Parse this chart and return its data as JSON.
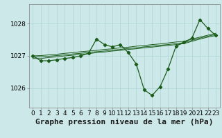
{
  "title": "Graphe pression niveau de la mer (hPa)",
  "background_color": "#cce8e8",
  "grid_color": "#add4d4",
  "line_color": "#1a5c1a",
  "xlim": [
    -0.5,
    23.5
  ],
  "ylim": [
    1025.4,
    1028.6
  ],
  "yticks": [
    1026,
    1027,
    1028
  ],
  "xticks": [
    0,
    1,
    2,
    3,
    4,
    5,
    6,
    7,
    8,
    9,
    10,
    11,
    12,
    13,
    14,
    15,
    16,
    17,
    18,
    19,
    20,
    21,
    22,
    23
  ],
  "main": [
    1027.0,
    1026.85,
    1026.85,
    1026.88,
    1026.92,
    1026.95,
    1027.0,
    1027.08,
    1027.52,
    1027.35,
    1027.28,
    1027.35,
    1027.1,
    1026.75,
    1025.95,
    1025.78,
    1026.05,
    1026.6,
    1027.3,
    1027.42,
    1027.55,
    1028.12,
    1027.85,
    1027.63
  ],
  "band1": [
    1026.92,
    1026.92,
    1026.95,
    1026.97,
    1027.0,
    1027.02,
    1027.05,
    1027.07,
    1027.1,
    1027.12,
    1027.15,
    1027.17,
    1027.2,
    1027.22,
    1027.25,
    1027.27,
    1027.3,
    1027.32,
    1027.35,
    1027.38,
    1027.45,
    1027.52,
    1027.58,
    1027.63
  ],
  "band2": [
    1026.96,
    1026.97,
    1026.99,
    1027.01,
    1027.03,
    1027.06,
    1027.08,
    1027.11,
    1027.13,
    1027.15,
    1027.18,
    1027.2,
    1027.23,
    1027.25,
    1027.28,
    1027.3,
    1027.33,
    1027.35,
    1027.38,
    1027.41,
    1027.48,
    1027.55,
    1027.61,
    1027.66
  ],
  "band3": [
    1027.0,
    1027.01,
    1027.03,
    1027.05,
    1027.08,
    1027.1,
    1027.13,
    1027.15,
    1027.17,
    1027.2,
    1027.22,
    1027.25,
    1027.27,
    1027.3,
    1027.32,
    1027.35,
    1027.37,
    1027.4,
    1027.43,
    1027.45,
    1027.52,
    1027.58,
    1027.64,
    1027.7
  ],
  "title_fontsize": 8,
  "tick_fontsize": 6.5
}
